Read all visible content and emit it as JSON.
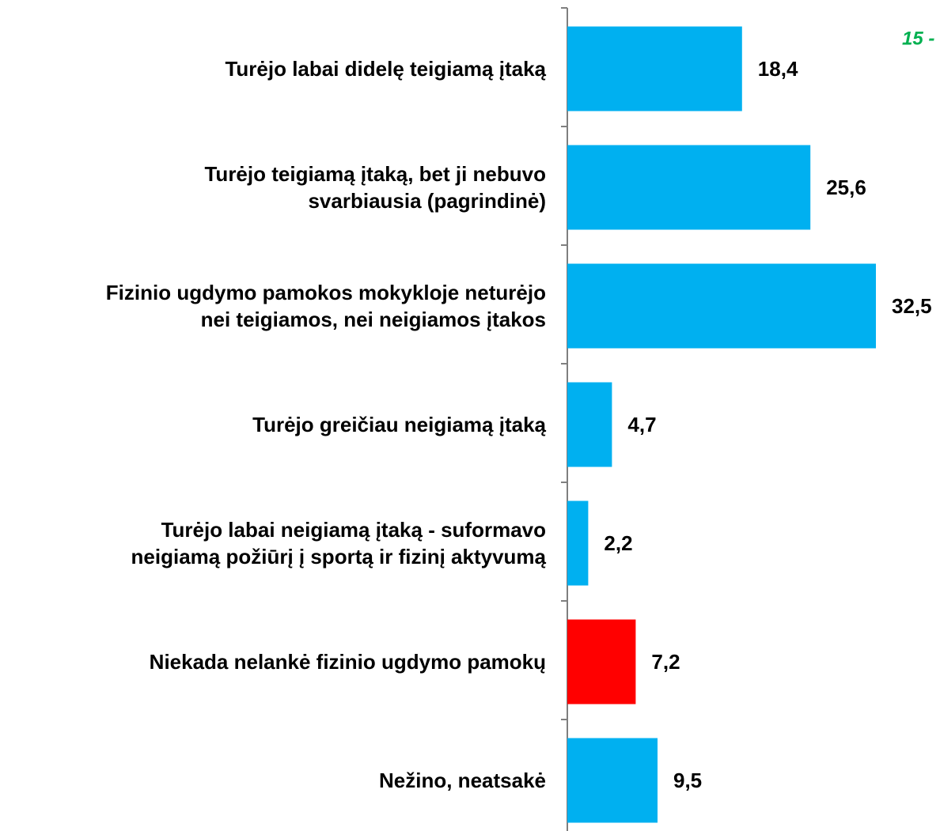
{
  "chart_data": {
    "type": "bar",
    "orientation": "horizontal",
    "annotation": "15 -",
    "categories": [
      [
        "Turėjo labai didelę teigiamą įtaką"
      ],
      [
        "Turėjo teigiamą įtaką, bet ji nebuvo",
        "svarbiausia (pagrindinė)"
      ],
      [
        "Fizinio ugdymo pamokos mokykloje neturėjo",
        "nei teigiamos, nei neigiamos įtakos"
      ],
      [
        "Turėjo greičiau neigiamą įtaką"
      ],
      [
        "Turėjo labai neigiamą įtaką - suformavo",
        "neigiamą požiūrį į sportą ir fizinį aktyvumą"
      ],
      [
        "Niekada nelankė fizinio ugdymo pamokų"
      ],
      [
        "Nežino, neatsakė"
      ]
    ],
    "values": [
      18.4,
      25.6,
      32.5,
      4.7,
      2.2,
      7.2,
      9.5
    ],
    "value_labels": [
      "18,4",
      "25,6",
      "32,5",
      "4,7",
      "2,2",
      "7,2",
      "9,5"
    ],
    "colors": [
      "#00b0f0",
      "#00b0f0",
      "#00b0f0",
      "#00b0f0",
      "#00b0f0",
      "#ff0000",
      "#00b0f0"
    ]
  }
}
